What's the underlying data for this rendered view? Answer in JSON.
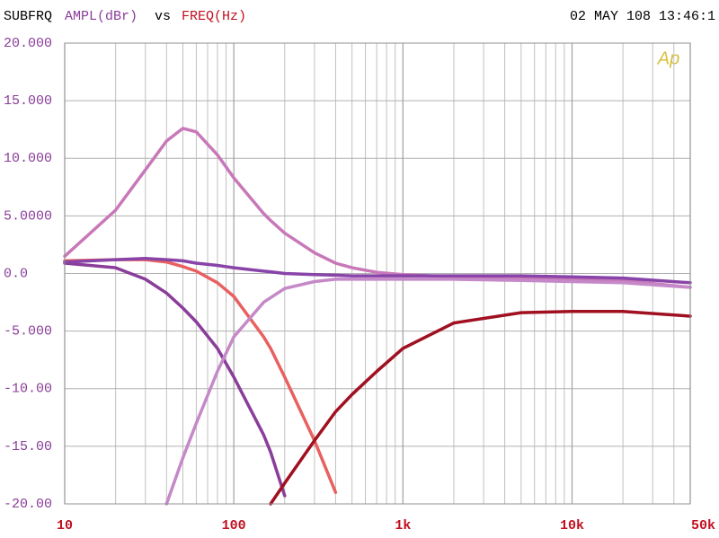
{
  "chart_data": {
    "type": "line",
    "title_prefix": "SUBFRQ",
    "y_label": "AMPL(dBr)",
    "title_vs": "vs",
    "x_label": "FREQ(Hz)",
    "timestamp": "02 MAY 108 13:46:1",
    "logo": "Ap",
    "xscale": "log",
    "grid": true,
    "xlim": [
      10,
      50000
    ],
    "ylim": [
      -20,
      20
    ],
    "xticks": [
      10,
      100,
      {
        "value": 1000,
        "label": "1k"
      },
      {
        "value": 10000,
        "label": "10k"
      },
      {
        "value": 50000,
        "label": "50k"
      }
    ],
    "yticks": [
      {
        "value": 20,
        "label": "20.000"
      },
      {
        "value": 15,
        "label": "15.000"
      },
      {
        "value": 10,
        "label": "10.000"
      },
      {
        "value": 5,
        "label": "5.0000"
      },
      {
        "value": 0,
        "label": "0.0"
      },
      {
        "value": -5,
        "label": "-5.000"
      },
      {
        "value": -10,
        "label": "-10.00"
      },
      {
        "value": -15,
        "label": "-15.00"
      },
      {
        "value": -20,
        "label": "-20.00"
      }
    ],
    "x": [
      10,
      20,
      30,
      40,
      50,
      60,
      80,
      100,
      150,
      165,
      200,
      300,
      400,
      500,
      700,
      1000,
      2000,
      5000,
      10000,
      20000,
      50000
    ],
    "series": [
      {
        "color": "#c878b8",
        "values": [
          1.5,
          5.5,
          9,
          11.5,
          12.6,
          12.3,
          10.3,
          8.3,
          5.2,
          4.6,
          3.5,
          1.8,
          0.9,
          0.5,
          0.1,
          -0.1,
          -0.3,
          -0.4,
          -0.5,
          -0.6,
          -1.2
        ]
      },
      {
        "color": "#8a3d9a",
        "values": [
          0.9,
          0.5,
          -0.5,
          -1.7,
          -3,
          -4.2,
          -6.5,
          -9,
          -14,
          -15.5,
          -19.3,
          null,
          null,
          null,
          null,
          null,
          null,
          null,
          null,
          null,
          null
        ]
      },
      {
        "color": "#e86060",
        "values": [
          1.1,
          1.2,
          1.2,
          1.0,
          0.6,
          0.2,
          -0.8,
          -2,
          -5.5,
          -6.5,
          -9,
          -14.5,
          -19,
          null,
          null,
          null,
          null,
          null,
          null,
          null,
          null
        ]
      },
      {
        "color": "#c588c8",
        "values": [
          null,
          null,
          null,
          -20,
          -16,
          -13,
          -8.5,
          -5.5,
          -2.5,
          -2.1,
          -1.3,
          -0.7,
          -0.5,
          -0.5,
          -0.5,
          -0.5,
          -0.5,
          -0.6,
          -0.7,
          -0.8,
          -1.2
        ]
      },
      {
        "color": "#a01020",
        "values": [
          null,
          null,
          null,
          null,
          null,
          null,
          null,
          null,
          null,
          -20,
          -18.2,
          -14.5,
          -12,
          -10.5,
          -8.5,
          -6.5,
          -4.3,
          -3.4,
          -3.3,
          -3.3,
          -3.7
        ]
      },
      {
        "color": "#8844a8",
        "values": [
          1.0,
          1.2,
          1.3,
          1.2,
          1.1,
          0.9,
          0.7,
          0.5,
          0.2,
          0.15,
          0,
          -0.1,
          -0.15,
          -0.2,
          -0.2,
          -0.2,
          -0.2,
          -0.2,
          -0.3,
          -0.4,
          -0.8
        ]
      }
    ]
  }
}
